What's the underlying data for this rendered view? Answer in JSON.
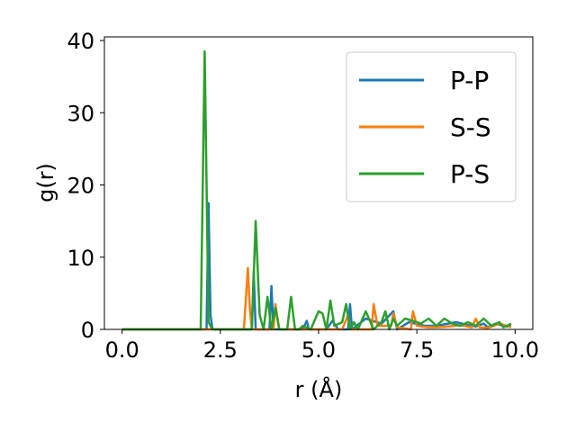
{
  "chart_data": {
    "type": "line",
    "xlabel": "r (Å)",
    "ylabel": "g(r)",
    "xlim": [
      -0.45,
      10.45
    ],
    "ylim": [
      0,
      40.5
    ],
    "xticks": [
      "0.0",
      "2.5",
      "5.0",
      "7.5",
      "10.0"
    ],
    "yticks": [
      "0",
      "10",
      "20",
      "30",
      "40"
    ],
    "grid": false,
    "legend_position": "upper-right",
    "series": [
      {
        "name": "P-P",
        "color": "#1f77b4",
        "x": [
          0.0,
          2.1,
          2.15,
          2.2,
          2.25,
          2.3,
          3.3,
          3.35,
          3.4,
          3.45,
          3.5,
          3.75,
          3.8,
          3.85,
          4.6,
          4.7,
          4.75,
          5.1,
          5.2,
          5.35,
          5.5,
          5.75,
          5.8,
          5.85,
          6.2,
          6.6,
          6.9,
          7.0,
          7.3,
          7.7,
          8.0,
          8.5,
          8.8,
          9.0,
          9.2,
          9.3,
          9.5,
          9.8,
          9.9
        ],
        "y": [
          0,
          0,
          0,
          17.5,
          2,
          0,
          0,
          8,
          0,
          0,
          0,
          0,
          6,
          0,
          0,
          1.2,
          0,
          0,
          0,
          1.2,
          0,
          0,
          3.5,
          0,
          1.5,
          0.8,
          2.5,
          0,
          1,
          0.5,
          0.5,
          1,
          0.6,
          0.4,
          0.8,
          0.3,
          0.8,
          0.4,
          0.5
        ]
      },
      {
        "name": "S-S",
        "color": "#ff7f0e",
        "x": [
          0.0,
          3.1,
          3.2,
          3.25,
          3.3,
          3.85,
          3.9,
          4.0,
          4.05,
          5.6,
          5.75,
          5.8,
          6.35,
          6.4,
          6.5,
          6.85,
          6.9,
          7.0,
          7.35,
          7.4,
          7.5,
          7.8,
          8.0,
          8.3,
          8.6,
          8.9,
          9.0,
          9.1,
          9.3,
          9.6,
          9.9
        ],
        "y": [
          0,
          0,
          8.5,
          3,
          0,
          0,
          3.5,
          0,
          0,
          0,
          2,
          0,
          0,
          3.5,
          0.5,
          0.5,
          2.2,
          0.3,
          0,
          2.5,
          0.5,
          0.3,
          0.3,
          0.4,
          0.6,
          0.3,
          1.5,
          0.3,
          0.2,
          0.8,
          0.3
        ]
      },
      {
        "name": "P-S",
        "color": "#2ca02c",
        "x": [
          0.0,
          2.0,
          2.1,
          2.2,
          2.3,
          3.3,
          3.4,
          3.5,
          3.6,
          3.7,
          3.8,
          3.9,
          4.0,
          4.1,
          4.2,
          4.3,
          4.4,
          4.5,
          4.6,
          4.8,
          5.0,
          5.1,
          5.2,
          5.3,
          5.4,
          5.6,
          5.7,
          5.8,
          5.9,
          6.0,
          6.2,
          6.4,
          6.6,
          6.7,
          6.8,
          6.9,
          7.0,
          7.2,
          7.4,
          7.6,
          7.8,
          8.0,
          8.2,
          8.4,
          8.6,
          8.8,
          9.0,
          9.2,
          9.4,
          9.6,
          9.7,
          9.8,
          9.9
        ],
        "y": [
          0,
          0,
          38.5,
          1,
          0,
          0,
          15,
          2,
          0,
          4.5,
          0,
          3,
          0,
          0,
          0,
          4.5,
          0,
          0,
          0.5,
          0,
          2.5,
          2.2,
          0,
          4,
          0.5,
          1,
          3.5,
          0,
          1,
          0,
          2.5,
          0,
          1,
          2.5,
          0,
          1.5,
          0.5,
          1.5,
          1.2,
          0.8,
          1.5,
          0.5,
          1.5,
          0.8,
          0.5,
          1,
          0.5,
          1.5,
          0.5,
          1,
          0.3,
          0.5,
          0.8
        ]
      }
    ]
  }
}
